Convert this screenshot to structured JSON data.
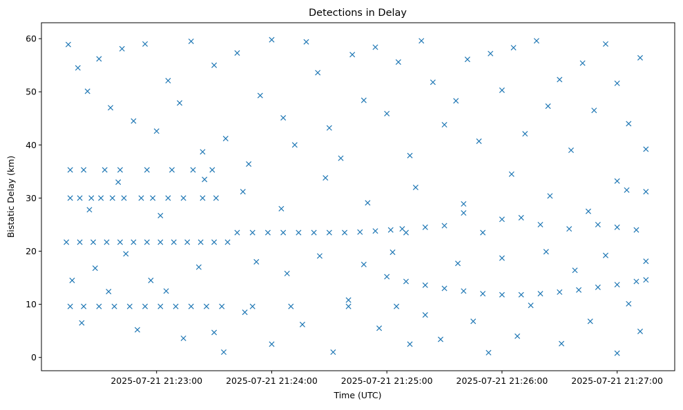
{
  "chart_data": {
    "type": "scatter",
    "title": "Detections in Delay",
    "xlabel": "Time (UTC)",
    "ylabel": "Bistatic Delay (km)",
    "x_is_time": true,
    "xlim": [
      "2025-07-21 21:22:00",
      "2025-07-21 21:27:30"
    ],
    "ylim": [
      -2.5,
      63
    ],
    "x_ticks": [
      "2025-07-21 21:23:00",
      "2025-07-21 21:24:00",
      "2025-07-21 21:25:00",
      "2025-07-21 21:26:00",
      "2025-07-21 21:27:00"
    ],
    "y_ticks": [
      0,
      10,
      20,
      30,
      40,
      50,
      60
    ],
    "marker": "x",
    "color": "#1f77b4",
    "grid": false,
    "series": [
      {
        "points": [
          [
            "2025-07-21 21:22:15",
            35.3
          ],
          [
            "2025-07-21 21:22:22",
            35.3
          ],
          [
            "2025-07-21 21:22:33",
            35.3
          ],
          [
            "2025-07-21 21:22:41",
            35.3
          ],
          [
            "2025-07-21 21:22:55",
            35.3
          ],
          [
            "2025-07-21 21:23:08",
            35.3
          ],
          [
            "2025-07-21 21:23:19",
            35.3
          ],
          [
            "2025-07-21 21:23:29",
            35.3
          ],
          [
            "2025-07-21 21:22:15",
            30.0
          ],
          [
            "2025-07-21 21:22:20",
            30.0
          ],
          [
            "2025-07-21 21:22:26",
            30.0
          ],
          [
            "2025-07-21 21:22:31",
            30.0
          ],
          [
            "2025-07-21 21:22:37",
            30.0
          ],
          [
            "2025-07-21 21:22:43",
            30.0
          ],
          [
            "2025-07-21 21:22:52",
            30.0
          ],
          [
            "2025-07-21 21:22:58",
            30.0
          ],
          [
            "2025-07-21 21:23:06",
            30.0
          ],
          [
            "2025-07-21 21:23:14",
            30.0
          ],
          [
            "2025-07-21 21:23:24",
            30.0
          ],
          [
            "2025-07-21 21:23:31",
            30.0
          ],
          [
            "2025-07-21 21:22:13",
            21.7
          ],
          [
            "2025-07-21 21:22:20",
            21.7
          ],
          [
            "2025-07-21 21:22:27",
            21.7
          ],
          [
            "2025-07-21 21:22:34",
            21.7
          ],
          [
            "2025-07-21 21:22:41",
            21.7
          ],
          [
            "2025-07-21 21:22:48",
            21.7
          ],
          [
            "2025-07-21 21:22:55",
            21.7
          ],
          [
            "2025-07-21 21:23:02",
            21.7
          ],
          [
            "2025-07-21 21:23:09",
            21.7
          ],
          [
            "2025-07-21 21:23:16",
            21.7
          ],
          [
            "2025-07-21 21:23:23",
            21.7
          ],
          [
            "2025-07-21 21:23:30",
            21.7
          ],
          [
            "2025-07-21 21:23:37",
            21.7
          ],
          [
            "2025-07-21 21:23:42",
            23.5
          ],
          [
            "2025-07-21 21:23:50",
            23.5
          ],
          [
            "2025-07-21 21:23:58",
            23.5
          ],
          [
            "2025-07-21 21:24:06",
            23.5
          ],
          [
            "2025-07-21 21:24:14",
            23.5
          ],
          [
            "2025-07-21 21:24:22",
            23.5
          ],
          [
            "2025-07-21 21:24:30",
            23.5
          ],
          [
            "2025-07-21 21:24:38",
            23.5
          ],
          [
            "2025-07-21 21:24:46",
            23.6
          ],
          [
            "2025-07-21 21:24:54",
            23.8
          ],
          [
            "2025-07-21 21:25:02",
            24.0
          ],
          [
            "2025-07-21 21:25:08",
            24.2
          ],
          [
            "2025-07-21 21:22:15",
            9.6
          ],
          [
            "2025-07-21 21:22:22",
            9.6
          ],
          [
            "2025-07-21 21:22:30",
            9.6
          ],
          [
            "2025-07-21 21:22:38",
            9.6
          ],
          [
            "2025-07-21 21:22:46",
            9.6
          ],
          [
            "2025-07-21 21:22:54",
            9.6
          ],
          [
            "2025-07-21 21:23:02",
            9.6
          ],
          [
            "2025-07-21 21:23:10",
            9.6
          ],
          [
            "2025-07-21 21:23:18",
            9.6
          ],
          [
            "2025-07-21 21:23:26",
            9.6
          ],
          [
            "2025-07-21 21:23:34",
            9.6
          ],
          [
            "2025-07-21 21:23:50",
            9.6
          ],
          [
            "2025-07-21 21:24:10",
            9.6
          ],
          [
            "2025-07-21 21:24:40",
            9.6
          ],
          [
            "2025-07-21 21:25:05",
            9.6
          ],
          [
            "2025-07-21 21:25:00",
            15.2
          ],
          [
            "2025-07-21 21:25:10",
            14.3
          ],
          [
            "2025-07-21 21:25:20",
            13.6
          ],
          [
            "2025-07-21 21:25:30",
            13.0
          ],
          [
            "2025-07-21 21:25:40",
            12.5
          ],
          [
            "2025-07-21 21:25:50",
            12.0
          ],
          [
            "2025-07-21 21:26:00",
            11.8
          ],
          [
            "2025-07-21 21:26:10",
            11.8
          ],
          [
            "2025-07-21 21:26:20",
            12.0
          ],
          [
            "2025-07-21 21:26:30",
            12.3
          ],
          [
            "2025-07-21 21:26:40",
            12.7
          ],
          [
            "2025-07-21 21:26:50",
            13.2
          ],
          [
            "2025-07-21 21:27:00",
            13.7
          ],
          [
            "2025-07-21 21:27:10",
            14.3
          ],
          [
            "2025-07-21 21:27:15",
            14.6
          ],
          [
            "2025-07-21 21:25:10",
            23.5
          ],
          [
            "2025-07-21 21:25:20",
            24.5
          ],
          [
            "2025-07-21 21:25:30",
            24.8
          ],
          [
            "2025-07-21 21:25:40",
            27.2
          ],
          [
            "2025-07-21 21:25:50",
            23.5
          ],
          [
            "2025-07-21 21:26:00",
            26.0
          ],
          [
            "2025-07-21 21:26:10",
            26.3
          ],
          [
            "2025-07-21 21:26:20",
            25.0
          ],
          [
            "2025-07-21 21:26:35",
            24.2
          ],
          [
            "2025-07-21 21:26:50",
            25.0
          ],
          [
            "2025-07-21 21:27:00",
            24.5
          ],
          [
            "2025-07-21 21:27:10",
            24.0
          ],
          [
            "2025-07-21 21:27:15",
            31.2
          ],
          [
            "2025-07-21 21:27:05",
            31.5
          ],
          [
            "2025-07-21 21:22:14",
            58.9
          ],
          [
            "2025-07-21 21:22:19",
            54.5
          ],
          [
            "2025-07-21 21:22:24",
            50.1
          ],
          [
            "2025-07-21 21:22:30",
            56.2
          ],
          [
            "2025-07-21 21:22:36",
            47.0
          ],
          [
            "2025-07-21 21:22:42",
            58.1
          ],
          [
            "2025-07-21 21:22:48",
            44.5
          ],
          [
            "2025-07-21 21:22:54",
            59.0
          ],
          [
            "2025-07-21 21:23:00",
            42.6
          ],
          [
            "2025-07-21 21:23:06",
            52.1
          ],
          [
            "2025-07-21 21:23:12",
            47.9
          ],
          [
            "2025-07-21 21:23:18",
            59.5
          ],
          [
            "2025-07-21 21:23:24",
            38.7
          ],
          [
            "2025-07-21 21:23:30",
            55.0
          ],
          [
            "2025-07-21 21:23:36",
            41.2
          ],
          [
            "2025-07-21 21:23:42",
            57.3
          ],
          [
            "2025-07-21 21:23:48",
            36.4
          ],
          [
            "2025-07-21 21:23:54",
            49.3
          ],
          [
            "2025-07-21 21:24:00",
            59.8
          ],
          [
            "2025-07-21 21:24:06",
            45.1
          ],
          [
            "2025-07-21 21:24:12",
            40.0
          ],
          [
            "2025-07-21 21:24:18",
            59.4
          ],
          [
            "2025-07-21 21:24:24",
            53.6
          ],
          [
            "2025-07-21 21:24:30",
            43.2
          ],
          [
            "2025-07-21 21:24:36",
            37.5
          ],
          [
            "2025-07-21 21:24:42",
            57.0
          ],
          [
            "2025-07-21 21:24:48",
            48.4
          ],
          [
            "2025-07-21 21:24:54",
            58.4
          ],
          [
            "2025-07-21 21:25:00",
            45.9
          ],
          [
            "2025-07-21 21:25:06",
            55.6
          ],
          [
            "2025-07-21 21:25:12",
            38.0
          ],
          [
            "2025-07-21 21:25:18",
            59.6
          ],
          [
            "2025-07-21 21:25:24",
            51.8
          ],
          [
            "2025-07-21 21:25:30",
            43.8
          ],
          [
            "2025-07-21 21:25:36",
            48.3
          ],
          [
            "2025-07-21 21:25:42",
            56.1
          ],
          [
            "2025-07-21 21:25:48",
            40.7
          ],
          [
            "2025-07-21 21:25:54",
            57.2
          ],
          [
            "2025-07-21 21:26:00",
            50.3
          ],
          [
            "2025-07-21 21:26:06",
            58.3
          ],
          [
            "2025-07-21 21:26:12",
            42.1
          ],
          [
            "2025-07-21 21:26:18",
            59.6
          ],
          [
            "2025-07-21 21:26:24",
            47.3
          ],
          [
            "2025-07-21 21:26:30",
            52.3
          ],
          [
            "2025-07-21 21:26:36",
            39.0
          ],
          [
            "2025-07-21 21:26:42",
            55.4
          ],
          [
            "2025-07-21 21:26:48",
            46.5
          ],
          [
            "2025-07-21 21:26:54",
            59.0
          ],
          [
            "2025-07-21 21:27:00",
            51.6
          ],
          [
            "2025-07-21 21:27:06",
            44.0
          ],
          [
            "2025-07-21 21:27:12",
            56.4
          ],
          [
            "2025-07-21 21:27:15",
            39.2
          ],
          [
            "2025-07-21 21:22:16",
            14.5
          ],
          [
            "2025-07-21 21:22:21",
            6.5
          ],
          [
            "2025-07-21 21:22:28",
            16.8
          ],
          [
            "2025-07-21 21:22:35",
            12.4
          ],
          [
            "2025-07-21 21:22:44",
            19.5
          ],
          [
            "2025-07-21 21:22:50",
            5.2
          ],
          [
            "2025-07-21 21:22:57",
            14.5
          ],
          [
            "2025-07-21 21:23:05",
            12.5
          ],
          [
            "2025-07-21 21:23:14",
            3.6
          ],
          [
            "2025-07-21 21:23:22",
            17.0
          ],
          [
            "2025-07-21 21:23:30",
            4.7
          ],
          [
            "2025-07-21 21:23:35",
            1.0
          ],
          [
            "2025-07-21 21:23:46",
            8.5
          ],
          [
            "2025-07-21 21:23:52",
            18.0
          ],
          [
            "2025-07-21 21:24:00",
            2.5
          ],
          [
            "2025-07-21 21:24:08",
            15.8
          ],
          [
            "2025-07-21 21:24:16",
            6.2
          ],
          [
            "2025-07-21 21:24:25",
            19.1
          ],
          [
            "2025-07-21 21:24:32",
            1.0
          ],
          [
            "2025-07-21 21:24:40",
            10.8
          ],
          [
            "2025-07-21 21:24:48",
            17.5
          ],
          [
            "2025-07-21 21:24:56",
            5.5
          ],
          [
            "2025-07-21 21:25:03",
            19.8
          ],
          [
            "2025-07-21 21:25:12",
            2.5
          ],
          [
            "2025-07-21 21:25:20",
            8.0
          ],
          [
            "2025-07-21 21:25:28",
            3.4
          ],
          [
            "2025-07-21 21:25:37",
            17.7
          ],
          [
            "2025-07-21 21:25:45",
            6.8
          ],
          [
            "2025-07-21 21:25:53",
            0.9
          ],
          [
            "2025-07-21 21:26:00",
            18.7
          ],
          [
            "2025-07-21 21:26:08",
            4.0
          ],
          [
            "2025-07-21 21:26:15",
            9.8
          ],
          [
            "2025-07-21 21:26:23",
            19.9
          ],
          [
            "2025-07-21 21:26:31",
            2.6
          ],
          [
            "2025-07-21 21:26:38",
            16.4
          ],
          [
            "2025-07-21 21:26:46",
            6.8
          ],
          [
            "2025-07-21 21:26:54",
            19.2
          ],
          [
            "2025-07-21 21:27:00",
            0.8
          ],
          [
            "2025-07-21 21:27:06",
            10.1
          ],
          [
            "2025-07-21 21:27:12",
            4.9
          ],
          [
            "2025-07-21 21:27:15",
            18.1
          ],
          [
            "2025-07-21 21:22:25",
            27.8
          ],
          [
            "2025-07-21 21:22:40",
            33.0
          ],
          [
            "2025-07-21 21:23:02",
            26.7
          ],
          [
            "2025-07-21 21:23:25",
            33.5
          ],
          [
            "2025-07-21 21:23:45",
            31.2
          ],
          [
            "2025-07-21 21:24:05",
            28.0
          ],
          [
            "2025-07-21 21:24:28",
            33.8
          ],
          [
            "2025-07-21 21:24:50",
            29.1
          ],
          [
            "2025-07-21 21:25:15",
            32.0
          ],
          [
            "2025-07-21 21:25:40",
            28.9
          ],
          [
            "2025-07-21 21:26:05",
            34.5
          ],
          [
            "2025-07-21 21:26:25",
            30.4
          ],
          [
            "2025-07-21 21:26:45",
            27.5
          ],
          [
            "2025-07-21 21:27:00",
            33.2
          ]
        ]
      }
    ]
  }
}
